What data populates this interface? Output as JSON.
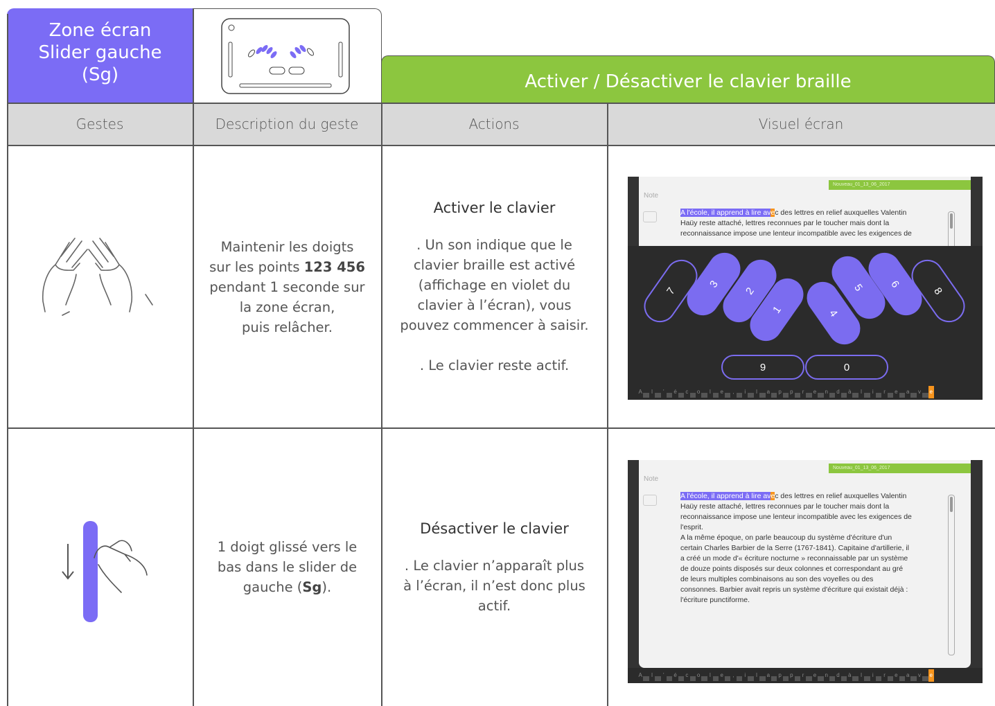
{
  "header": {
    "zone_title": [
      "Zone écran",
      "Slider gauche",
      "(Sg)"
    ],
    "banner": "Activer / Désactiver le clavier braille"
  },
  "columns": [
    "Gestes",
    "Description du geste",
    "Actions",
    "Visuel écran"
  ],
  "rows": [
    {
      "description": [
        [
          {
            "text": "Maintenir les doigts"
          }
        ],
        [
          {
            "text": "sur les points "
          },
          {
            "text": "123 456",
            "bold": true
          }
        ],
        [
          {
            "text": "pendant 1 seconde sur"
          }
        ],
        [
          {
            "text": "la zone écran,"
          }
        ],
        [
          {
            "text": "puis relâcher."
          }
        ]
      ],
      "action": {
        "title": "Activer le clavier",
        "paragraphs": [
          [
            ". Un son indique que le",
            "clavier braille est activé",
            "(affichage en violet du",
            "clavier à l’écran), vous",
            "pouvez commencer à saisir."
          ],
          [
            ". Le clavier reste actif."
          ]
        ]
      },
      "screen": {
        "note": "Note",
        "file": "Nouveau_01_13_06_2017",
        "keyboard": true,
        "highlight": "A l'école, il apprend à lire av",
        "cursor": "e",
        "rest": "c des lettres en relief auxquelles Valentin",
        "lines": [
          "Haüy reste attaché, lettres reconnues par le toucher mais dont la",
          "reconnaissance impose une lenteur incompatible avec les exigences de"
        ],
        "keys": [
          "7",
          "3",
          "2",
          "1",
          "4",
          "5",
          "6",
          "8"
        ],
        "bottom_keys": [
          "9",
          "0"
        ],
        "braille": "A l ' é c o l e , i l a p p r e n d à l i r e a v e"
      }
    },
    {
      "description": [
        [
          {
            "text": "1 doigt glissé vers le"
          }
        ],
        [
          {
            "text": "bas dans le slider de"
          }
        ],
        [
          {
            "text": "gauche ("
          },
          {
            "text": "Sg",
            "bold": true
          },
          {
            "text": ")."
          }
        ]
      ],
      "action": {
        "title": "Désactiver le clavier",
        "paragraphs": [
          [
            ". Le clavier n’apparaît plus",
            "à l’écran, il n’est donc plus",
            "actif."
          ]
        ]
      },
      "screen": {
        "note": "Note",
        "file": "Nouveau_01_13_06_2017",
        "keyboard": false,
        "highlight": "A l'école, il apprend à lire av",
        "cursor": "e",
        "rest": "c des lettres en relief auxquelles Valentin",
        "lines": [
          "Haüy reste attaché, lettres reconnues par le toucher mais dont la",
          "reconnaissance impose une lenteur incompatible avec les exigences de",
          "l'esprit.",
          "A la même époque, on parle beaucoup du système d'écriture d'un",
          "certain Charles Barbier de la Serre (1767-1841). Capitaine d'artillerie, il",
          "a créé un mode d'« écriture nocturne » reconnaissable par un système",
          "de douze points disposés sur deux colonnes et correspondant au gré",
          "de leurs multiples combinaisons au son des voyelles ou des",
          "consonnes. Barbier avait repris un système d'écriture qui existait déjà :",
          "l'écriture punctiforme."
        ],
        "braille": "A l ' é c o l e , i l a p p r e n d à l i r e a v e"
      }
    }
  ]
}
